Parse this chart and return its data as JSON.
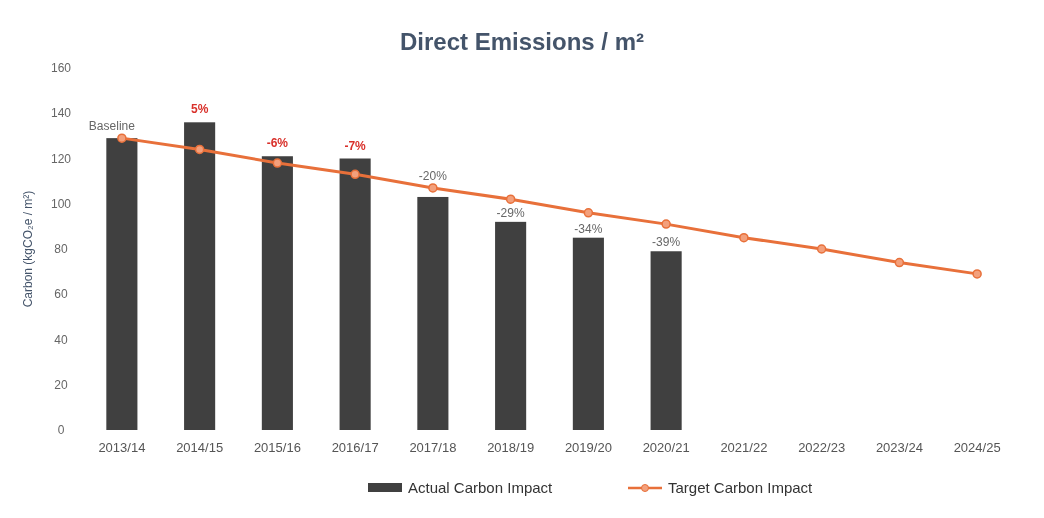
{
  "chart_data": {
    "type": "bar",
    "title": "Direct Emissions / m²",
    "ylabel": "Carbon (kgCO₂e / m²)",
    "categories": [
      "2013/14",
      "2014/15",
      "2015/16",
      "2016/17",
      "2017/18",
      "2018/19",
      "2019/20",
      "2020/21",
      "2021/22",
      "2022/23",
      "2023/24",
      "2024/25"
    ],
    "series": [
      {
        "name": "Actual Carbon Impact",
        "color": "#404040",
        "values": [
          129,
          136,
          121,
          120,
          103,
          92,
          85,
          79,
          null,
          null,
          null,
          null
        ]
      },
      {
        "name": "Target Carbon Impact",
        "type": "line",
        "color": "#e8703a",
        "marker": "circle",
        "values": [
          129,
          124,
          118,
          113,
          107,
          102,
          96,
          91,
          85,
          80,
          74,
          69
        ]
      }
    ],
    "annotations": [
      {
        "text": "Baseline",
        "x": "2013/14",
        "y": 129
      },
      {
        "text": "5%",
        "x": "2014/15",
        "y": 136
      },
      {
        "text": "-6%",
        "x": "2015/16",
        "y": 121
      },
      {
        "text": "-7%",
        "x": "2016/17",
        "y": 120
      },
      {
        "text": "-20%",
        "x": "2017/18",
        "y": 103
      },
      {
        "text": "-29%",
        "x": "2018/19",
        "y": 92
      },
      {
        "text": "-34%",
        "x": "2019/20",
        "y": 85
      },
      {
        "text": "-39%",
        "x": "2020/21",
        "y": 79
      }
    ],
    "ylim": [
      0,
      160
    ],
    "yticks": [
      0,
      20,
      40,
      60,
      80,
      100,
      120,
      140,
      160
    ],
    "grid": false,
    "legend": "bottom"
  }
}
